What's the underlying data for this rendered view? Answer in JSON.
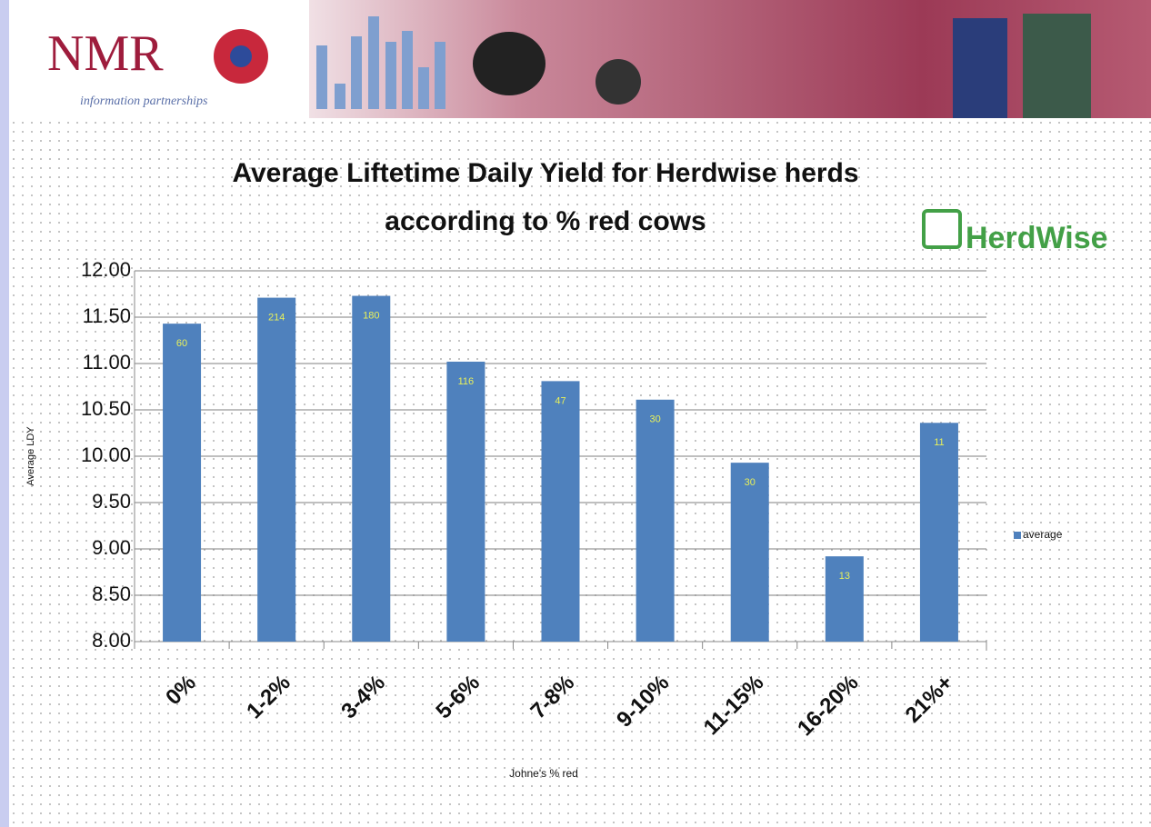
{
  "header": {
    "logo": "NMR",
    "tagline": "information partnerships",
    "brand": "HerdWise"
  },
  "chart_data": {
    "type": "bar",
    "title": [
      "Average Liftetime Daily Yield  for Herdwise herds",
      "according to % red cows"
    ],
    "x_label": "Johne's % red",
    "y_label": "Average LDY",
    "categories": [
      "0%",
      "1-2%",
      "3-4%",
      "5-6%",
      "7-8%",
      "9-10%",
      "11-15%",
      "16-20%",
      "21%+"
    ],
    "series": [
      {
        "name": "average",
        "color": "#4f81bd",
        "values": [
          11.43,
          11.71,
          11.73,
          11.02,
          10.81,
          10.61,
          9.93,
          8.92,
          10.36
        ]
      }
    ],
    "bar_labels": [
      60,
      214,
      180,
      116,
      47,
      30,
      30,
      13,
      11
    ],
    "ylim": [
      8,
      12
    ],
    "yticks": [
      {
        "value": 8,
        "label": "8.00"
      },
      {
        "value": 8.5,
        "label": "8.50"
      },
      {
        "value": 9,
        "label": "9.00"
      },
      {
        "value": 9.5,
        "label": "9.50"
      },
      {
        "value": 10,
        "label": "10.00"
      },
      {
        "value": 10.5,
        "label": "10.50"
      },
      {
        "value": 11,
        "label": "11.00"
      },
      {
        "value": 11.5,
        "label": "11.50"
      },
      {
        "value": 12,
        "label": "12.00"
      }
    ],
    "grid": true,
    "legend": "right"
  }
}
